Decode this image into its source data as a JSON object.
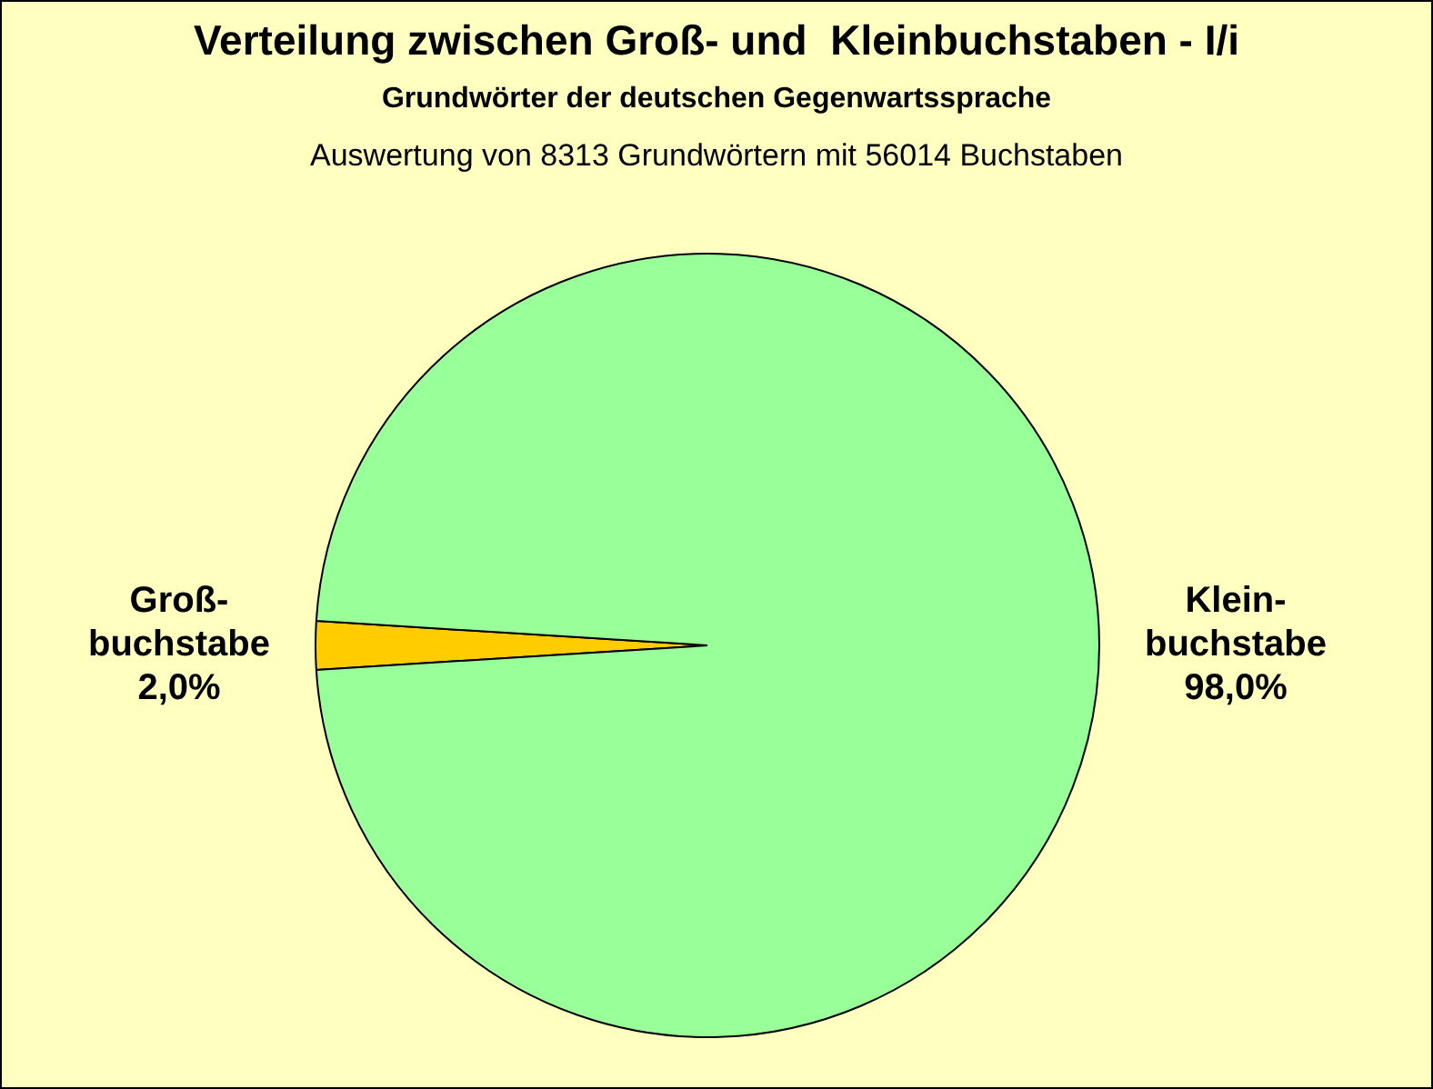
{
  "chart_data": {
    "type": "pie",
    "title": "Verteilung zwischen Groß- und  Kleinbuchstaben - I/i",
    "subtitle": "Grundwörter der deutschen Gegenwartssprache",
    "annotations": [
      "Auswertung von 8313 Grundwörtern mit 56014 Buchstaben"
    ],
    "categories": [
      "Groß-buchstabe",
      "Klein-buchstabe"
    ],
    "values": [
      2.0,
      98.0
    ],
    "colors": [
      "#ffcc00",
      "#99ff99"
    ],
    "value_labels": [
      "2,0%",
      "98,0%"
    ],
    "legend": false
  }
}
